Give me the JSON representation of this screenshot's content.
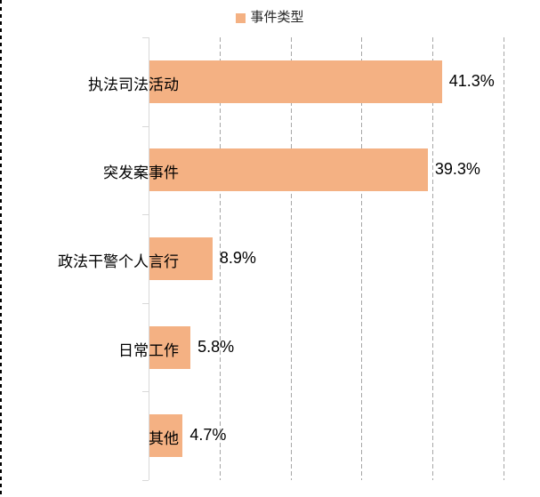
{
  "chart_data": {
    "type": "bar",
    "orientation": "horizontal",
    "title": "",
    "legend": "事件类型",
    "legend_position": "top-center",
    "categories": [
      "执法司法活动",
      "突发案事件",
      "政法干警个人言行",
      "日常工作",
      "其他"
    ],
    "values": [
      41.3,
      39.3,
      8.9,
      5.8,
      4.7
    ],
    "value_labels": [
      "41.3%",
      "39.3%",
      "8.9%",
      "5.8%",
      "4.7%"
    ],
    "xlabel": "",
    "ylabel": "",
    "xlim": [
      0,
      50
    ],
    "gridline_step": 10,
    "grid": true,
    "colors": {
      "bar": "#F4B183",
      "gridline": "#A6A6A6",
      "axis": "#D9D9D9",
      "text": "#000000"
    }
  }
}
